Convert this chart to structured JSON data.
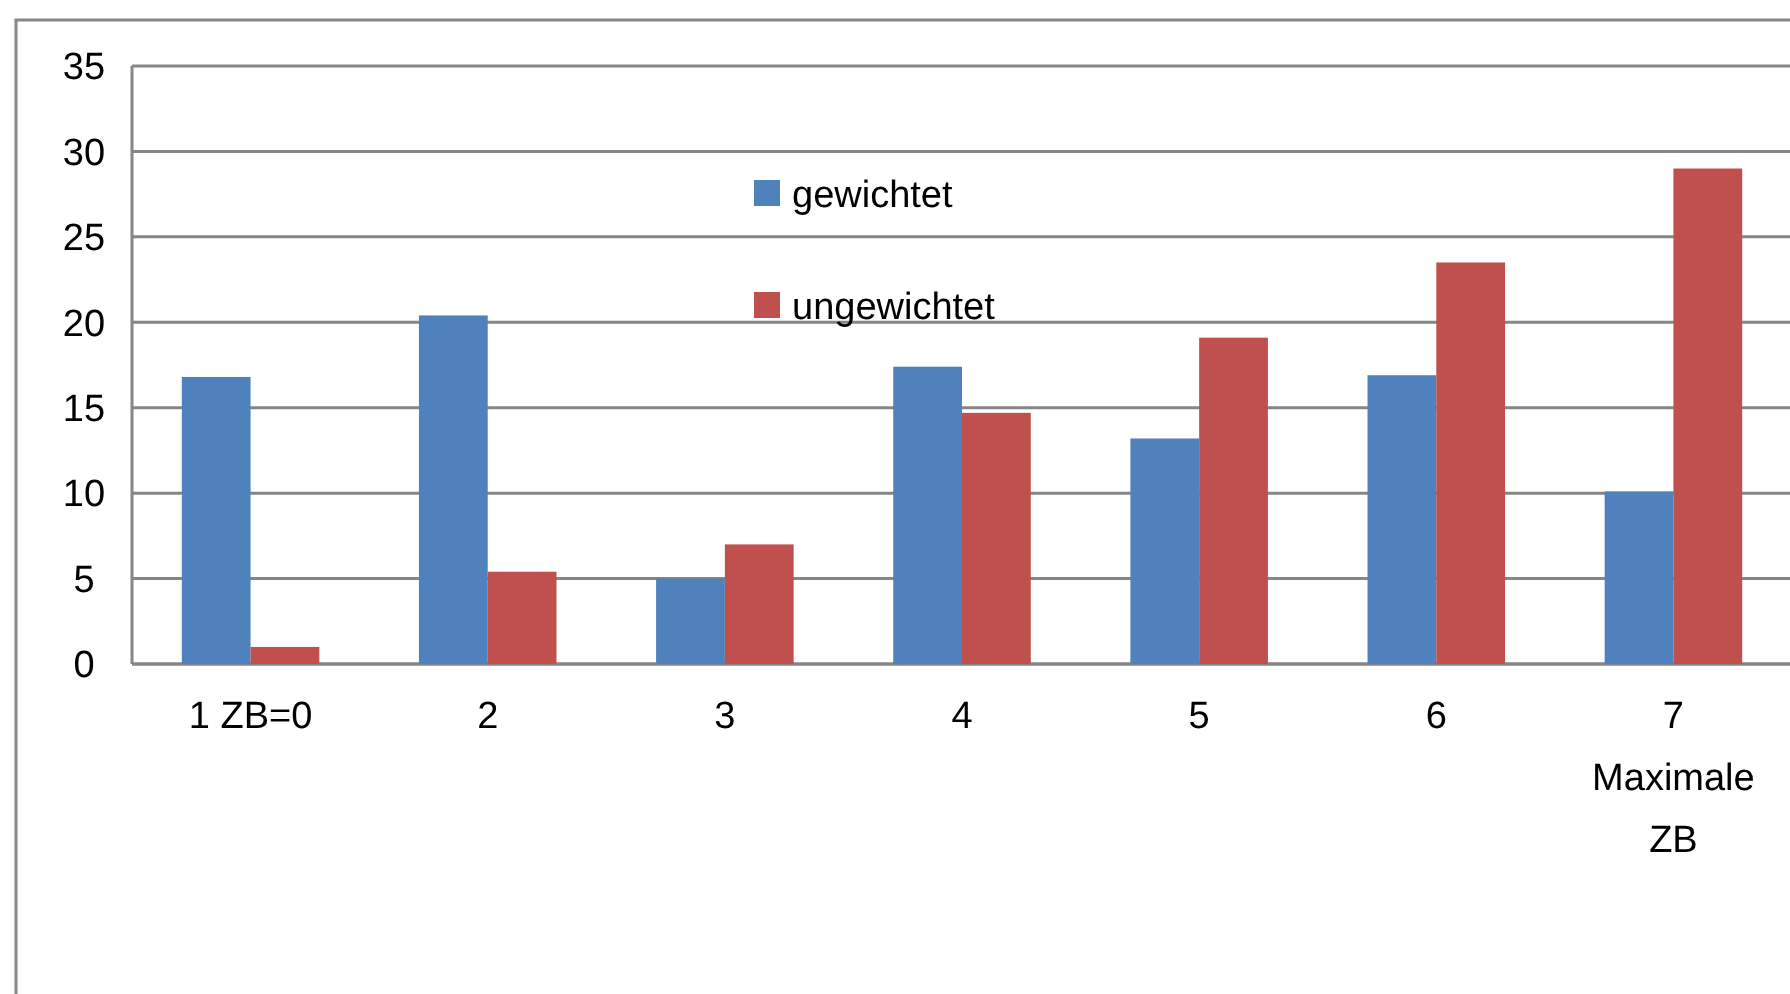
{
  "chart_data": {
    "type": "bar",
    "categories": [
      "1 ZB=0",
      "2",
      "3",
      "4",
      "5",
      "6",
      "7\nMaximale\nZB"
    ],
    "series": [
      {
        "name": "gewichtet",
        "color": "#4f81bd",
        "values": [
          16.8,
          20.4,
          5.0,
          17.4,
          13.2,
          16.9,
          10.1
        ]
      },
      {
        "name": "ungewichtet",
        "color": "#c0504d",
        "values": [
          1.0,
          5.4,
          7.0,
          14.7,
          19.1,
          23.5,
          29.0
        ]
      }
    ],
    "ylim": [
      0,
      35
    ],
    "yticks": [
      0,
      5,
      10,
      15,
      20,
      25,
      30,
      35
    ],
    "grid": "y",
    "legend": "top"
  }
}
